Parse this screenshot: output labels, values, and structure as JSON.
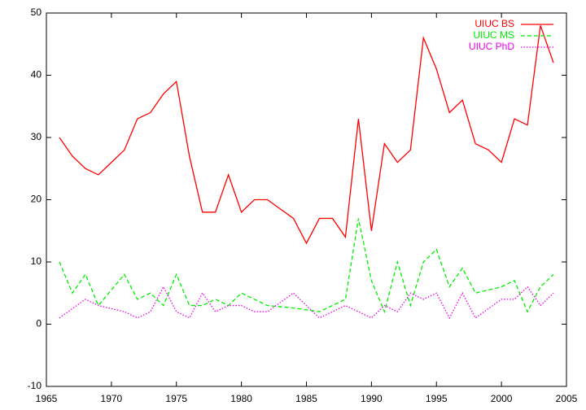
{
  "chart_data": {
    "type": "line",
    "x": [
      1966,
      1967,
      1968,
      1969,
      1970,
      1971,
      1972,
      1973,
      1974,
      1975,
      1976,
      1977,
      1978,
      1979,
      1980,
      1981,
      1982,
      1983,
      1984,
      1985,
      1986,
      1987,
      1988,
      1989,
      1990,
      1991,
      1992,
      1993,
      1994,
      1995,
      1996,
      1997,
      1998,
      1999,
      2000,
      2001,
      2002,
      2003,
      2004
    ],
    "series": [
      {
        "name": "UIUC BS",
        "color": "#ff0000",
        "dash": "solid",
        "values": [
          30,
          27,
          25,
          24,
          26,
          28,
          33,
          34,
          37,
          39,
          27,
          18,
          18,
          24,
          18,
          20,
          20,
          18.5,
          17,
          13,
          17,
          17,
          14,
          33,
          15,
          29,
          26,
          28,
          46,
          41,
          34,
          36,
          29,
          28,
          26,
          33,
          32,
          48,
          42
        ]
      },
      {
        "name": "UIUC MS",
        "color": "#00ee00",
        "dash": "dashed",
        "values": [
          10,
          5,
          8,
          3,
          5.5,
          8,
          4,
          5,
          3,
          8,
          3,
          3,
          4,
          3,
          5,
          4,
          3,
          2.8,
          2.6,
          2.3,
          2,
          3,
          4,
          17,
          7,
          2,
          10,
          3,
          10,
          12,
          6,
          9,
          5,
          5.5,
          6,
          7,
          2,
          6,
          8
        ]
      },
      {
        "name": "UIUC PhD",
        "color": "#ee00ee",
        "dash": "dotted",
        "values": [
          1,
          2.5,
          4,
          3,
          2.5,
          2,
          1,
          2,
          6,
          2,
          1,
          5,
          2,
          3,
          3,
          2,
          2,
          3.5,
          5,
          3,
          1,
          2,
          3,
          2,
          1,
          3,
          2,
          5,
          4,
          5,
          1,
          5,
          1,
          2.5,
          4,
          4,
          6,
          3,
          5
        ]
      }
    ],
    "xlim": [
      1965,
      2005
    ],
    "xticks": [
      1965,
      1970,
      1975,
      1980,
      1985,
      1990,
      1995,
      2000,
      2005
    ],
    "ylim": [
      -10,
      50
    ],
    "yticks": [
      -10,
      0,
      10,
      20,
      30,
      40,
      50
    ],
    "grid": false,
    "legend": "top-right"
  }
}
